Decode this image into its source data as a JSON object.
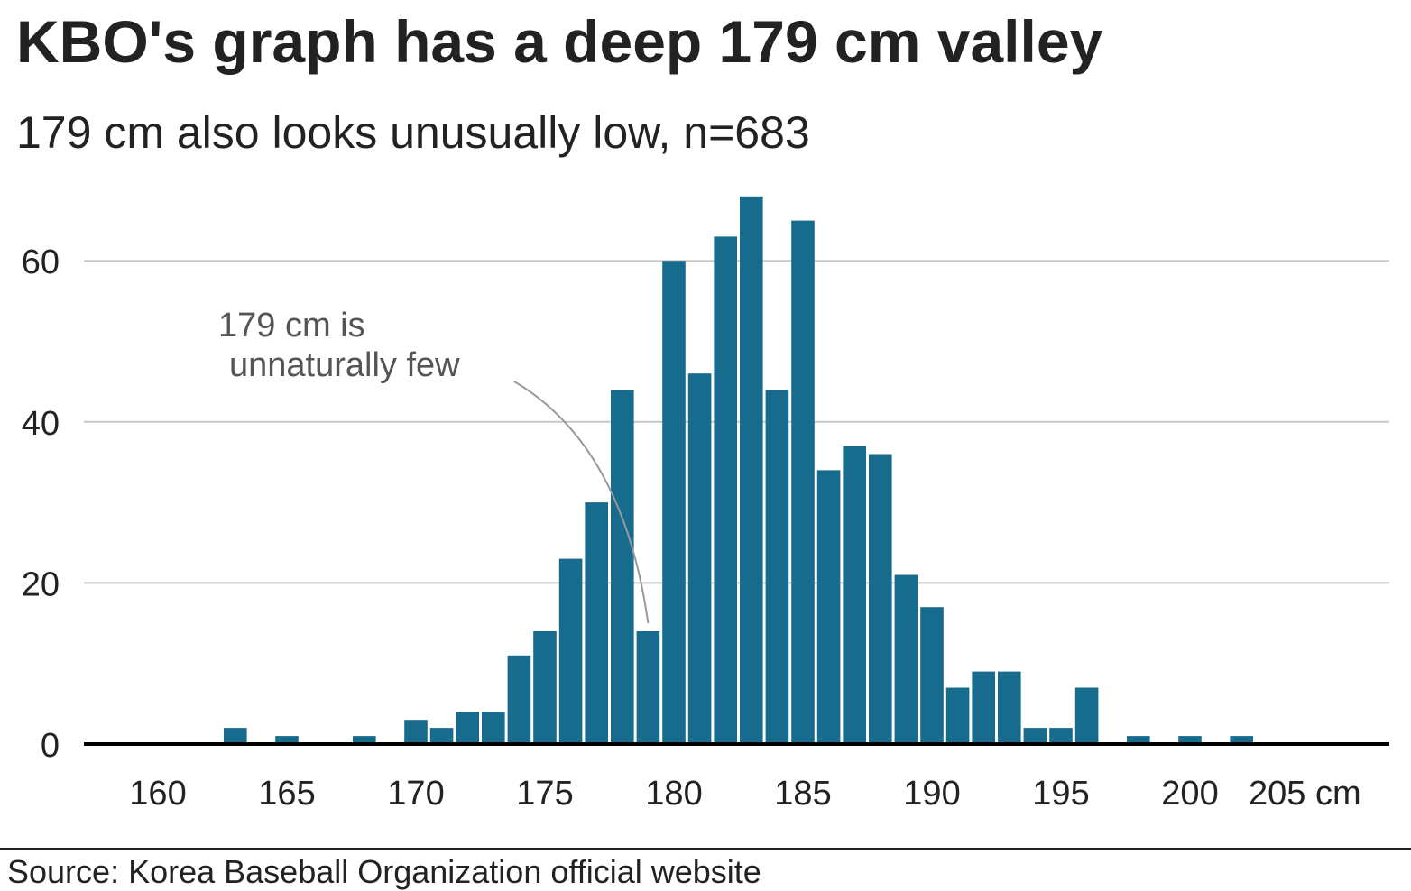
{
  "title": "KBO's graph has a deep 179 cm valley",
  "subtitle": "179 cm also looks unusually low, n=683",
  "source": "Source: Korea Baseball Organization official website",
  "colors": {
    "bar": "#176c8e",
    "grid": "#c8c8c8",
    "axis": "#000000",
    "annotation_line": "#999999"
  },
  "chart_data": {
    "type": "bar",
    "x": [
      163,
      165,
      168,
      170,
      171,
      172,
      173,
      174,
      175,
      176,
      177,
      178,
      179,
      180,
      181,
      182,
      183,
      184,
      185,
      186,
      187,
      188,
      189,
      190,
      191,
      192,
      193,
      194,
      195,
      196,
      198,
      200,
      202
    ],
    "values": [
      2,
      1,
      1,
      3,
      2,
      4,
      4,
      11,
      14,
      23,
      30,
      44,
      14,
      60,
      46,
      63,
      68,
      44,
      65,
      34,
      37,
      36,
      21,
      17,
      7,
      9,
      9,
      2,
      2,
      7,
      1,
      1,
      1
    ],
    "xlabel": "cm",
    "ylabel": "",
    "xlim": [
      157.2,
      208.8
    ],
    "ylim": [
      0,
      68
    ],
    "xticks": [
      160,
      165,
      170,
      175,
      180,
      185,
      190,
      195,
      200,
      205
    ],
    "xtick_labels": [
      "160",
      "165",
      "170",
      "175",
      "180",
      "185",
      "190",
      "195",
      "200",
      "205 cm"
    ],
    "yticks": [
      0,
      20,
      40,
      60
    ],
    "ytick_labels": [
      "0",
      "20",
      "40",
      "60"
    ],
    "grid": true,
    "annotation": {
      "lines": [
        "179 cm is",
        "unnaturally few"
      ],
      "target_x": 179,
      "target_y": 15
    }
  }
}
